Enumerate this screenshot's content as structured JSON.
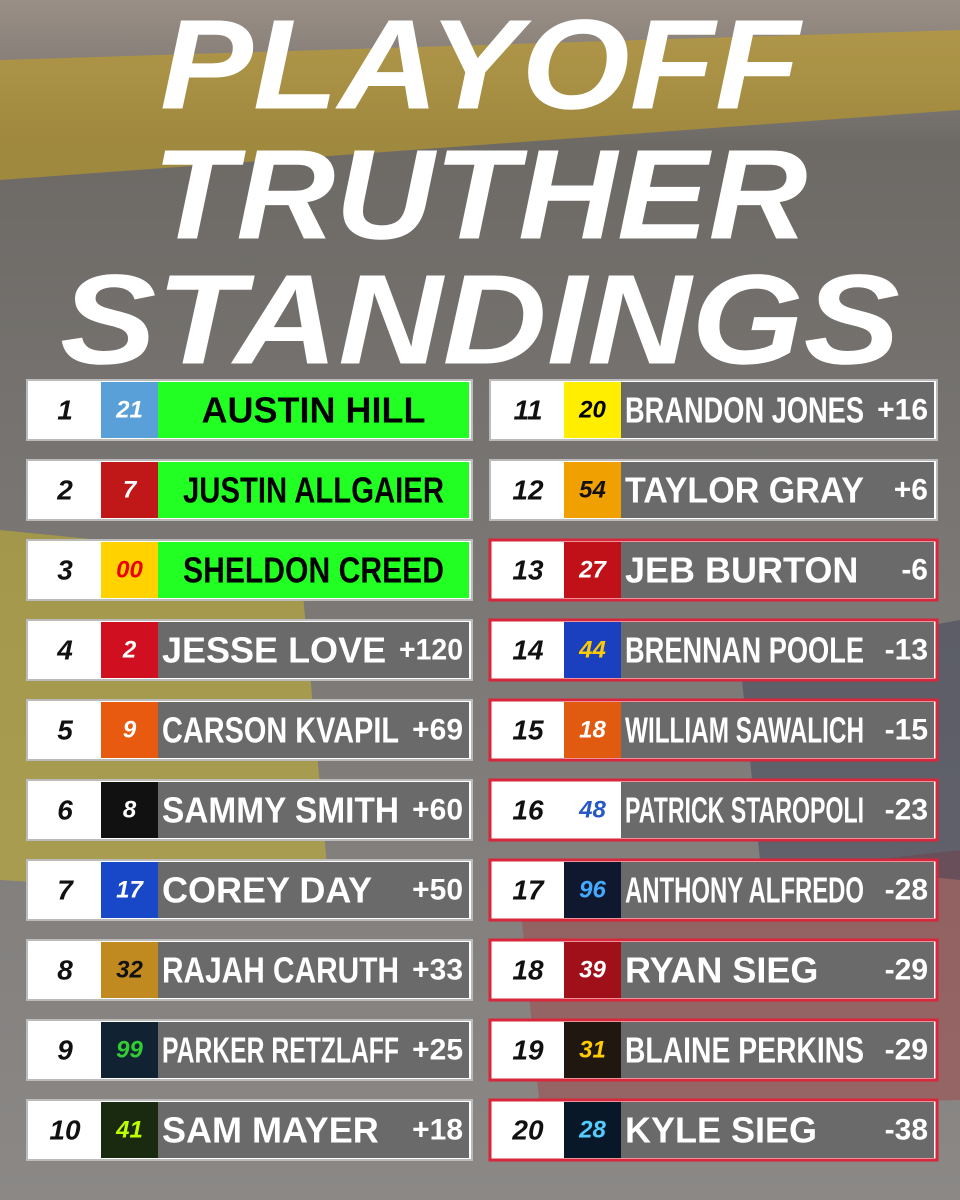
{
  "title": [
    "PLAYOFF",
    "TRUTHER",
    "STANDINGS"
  ],
  "standings": [
    {
      "pos": "1",
      "car": "21",
      "name": "AUSTIN HILL"
    },
    {
      "pos": "2",
      "car": "7",
      "name": "JUSTIN ALLGAIER"
    },
    {
      "pos": "3",
      "car": "00",
      "name": "SHELDON CREED"
    },
    {
      "pos": "4",
      "car": "2",
      "name": "JESSE LOVE",
      "points": "+120"
    },
    {
      "pos": "5",
      "car": "9",
      "name": "CARSON KVAPIL",
      "points": "+69"
    },
    {
      "pos": "6",
      "car": "8",
      "name": "SAMMY SMITH",
      "points": "+60"
    },
    {
      "pos": "7",
      "car": "17",
      "name": "COREY DAY",
      "points": "+50"
    },
    {
      "pos": "8",
      "car": "32",
      "name": "RAJAH CARUTH",
      "points": "+33"
    },
    {
      "pos": "9",
      "car": "99",
      "name": "PARKER RETZLAFF",
      "points": "+25"
    },
    {
      "pos": "10",
      "car": "41",
      "name": "SAM MAYER",
      "points": "+18"
    },
    {
      "pos": "11",
      "car": "20",
      "name": "BRANDON JONES",
      "points": "+16"
    },
    {
      "pos": "12",
      "car": "54",
      "name": "TAYLOR GRAY",
      "points": "+6"
    },
    {
      "pos": "13",
      "car": "27",
      "name": "JEB BURTON",
      "points": "-6"
    },
    {
      "pos": "14",
      "car": "44",
      "name": "BRENNAN POOLE",
      "points": "-13"
    },
    {
      "pos": "15",
      "car": "18",
      "name": "WILLIAM SAWALICH",
      "points": "-15"
    },
    {
      "pos": "16",
      "car": "48",
      "name": "PATRICK STAROPOLI",
      "points": "-23"
    },
    {
      "pos": "17",
      "car": "96",
      "name": "ANTHONY ALFREDO",
      "points": "-28"
    },
    {
      "pos": "18",
      "car": "39",
      "name": "RYAN SIEG",
      "points": "-29"
    },
    {
      "pos": "19",
      "car": "31",
      "name": "BLAINE PERKINS",
      "points": "-29"
    },
    {
      "pos": "20",
      "car": "28",
      "name": "KYLE SIEG",
      "points": "-38"
    }
  ]
}
